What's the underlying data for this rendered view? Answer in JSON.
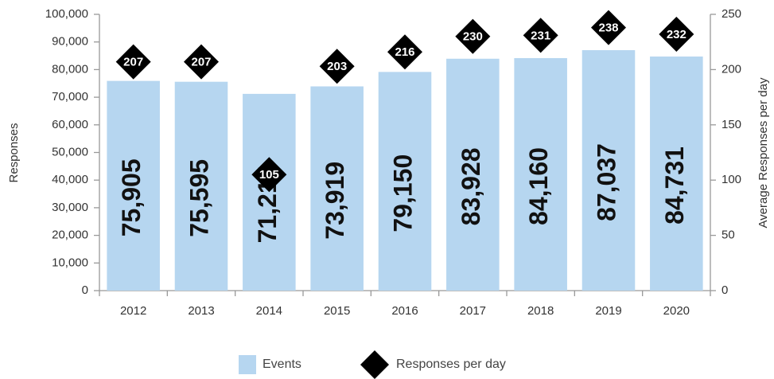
{
  "chart_data": {
    "type": "bar",
    "categories": [
      "2012",
      "2013",
      "2014",
      "2015",
      "2016",
      "2017",
      "2018",
      "2019",
      "2020"
    ],
    "series": [
      {
        "name": "Events",
        "color": "#b6d6f0",
        "values": [
          75905,
          75595,
          71214,
          73919,
          79150,
          83928,
          84160,
          87037,
          84731
        ],
        "value_labels": [
          "75,905",
          "75,595",
          "71,214",
          "73,919",
          "79,150",
          "83,928",
          "84,160",
          "87,037",
          "84,731"
        ]
      },
      {
        "name": "Responses per day",
        "type": "scatter",
        "marker": "diamond",
        "color": "#000000",
        "axis": "y2",
        "values": [
          207,
          207,
          105,
          203,
          216,
          230,
          231,
          238,
          232
        ]
      }
    ],
    "ylabel": "Responses",
    "y2label": "Average Responses per day",
    "ylim": [
      0,
      100000
    ],
    "yticks": [
      {
        "value": 0,
        "label": "0"
      },
      {
        "value": 10000,
        "label": "10,000"
      },
      {
        "value": 20000,
        "label": "20,000"
      },
      {
        "value": 30000,
        "label": "30,000"
      },
      {
        "value": 40000,
        "label": "40,000"
      },
      {
        "value": 50000,
        "label": "50,000"
      },
      {
        "value": 60000,
        "label": "60,000"
      },
      {
        "value": 70000,
        "label": "70,000"
      },
      {
        "value": 80000,
        "label": "80,000"
      },
      {
        "value": 90000,
        "label": "90,000"
      },
      {
        "value": 100000,
        "label": "100,000"
      }
    ],
    "y2lim": [
      0,
      250
    ],
    "y2ticks": [
      0,
      50,
      100,
      150,
      200,
      250
    ],
    "grid": false,
    "legend": "bottom"
  }
}
